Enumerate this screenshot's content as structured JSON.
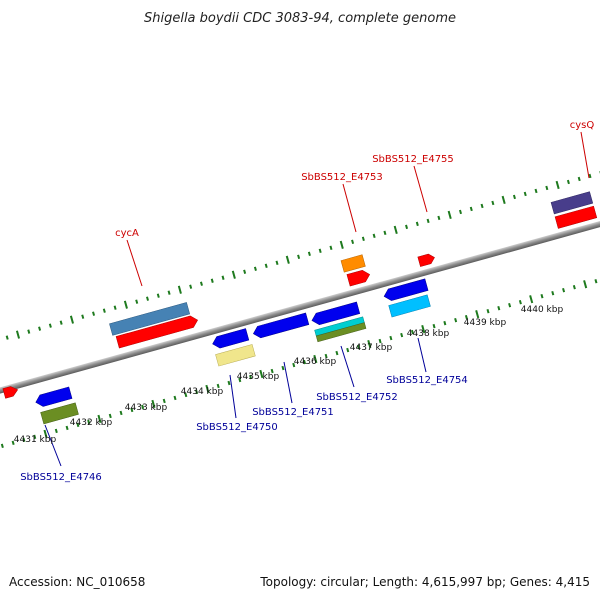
{
  "title": "Shigella boydii CDC 3083-94, complete genome",
  "footer": {
    "accession": "Accession: NC_010658",
    "topology": "Topology: circular; Length: 4,615,997 bp; Genes: 4,415"
  },
  "kbp_labels": [
    "4431 kbp",
    "4432 kbp",
    "4433 kbp",
    "4434 kbp",
    "4435 kbp",
    "4436 kbp",
    "4437 kbp",
    "4438 kbp",
    "4439 kbp",
    "4440 kbp"
  ],
  "genes_top": [
    {
      "name": "cycA",
      "color": "#cc0000"
    },
    {
      "name": "SbBS512_E4753",
      "color": "#cc0000"
    },
    {
      "name": "SbBS512_E4755",
      "color": "#cc0000"
    },
    {
      "name": "cysQ",
      "color": "#cc0000"
    }
  ],
  "genes_bottom": [
    {
      "name": "SbBS512_E4746",
      "color": "#000099"
    },
    {
      "name": "SbBS512_E4750",
      "color": "#000099"
    },
    {
      "name": "SbBS512_E4751",
      "color": "#000099"
    },
    {
      "name": "SbBS512_E4752",
      "color": "#000099"
    },
    {
      "name": "SbBS512_E4754",
      "color": "#000099"
    }
  ],
  "colors": {
    "backbone": "#8c8c8c",
    "ticks": "#1e7a1e",
    "cds_red": "#ff0000",
    "cds_blue": "#0000ee",
    "feature_steelblue": "#4682b4",
    "feature_orange": "#ff8c00",
    "feature_khaki": "#f0e68c",
    "feature_olive": "#6b8e23",
    "feature_cyan": "#00ced1",
    "feature_skyblue": "#00bfff",
    "feature_slate": "#483d8b"
  }
}
